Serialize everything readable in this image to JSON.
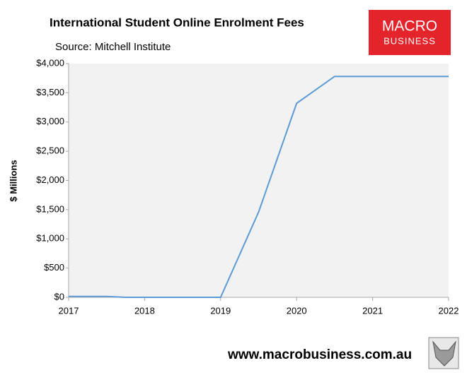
{
  "chart_data": {
    "type": "line",
    "title": "International Student Online Enrolment Fees",
    "subtitle": "Source: Mitchell Institute",
    "y_label": "$ Millions",
    "x": [
      2017,
      2017.5,
      2017.75,
      2019,
      2019.5,
      2020,
      2020.5,
      2022
    ],
    "values": [
      15,
      15,
      0,
      0,
      1460,
      3320,
      3780,
      3780
    ],
    "color": "#5b9bd5",
    "xlim": [
      2017,
      2022
    ],
    "xticks": [
      2017,
      2018,
      2019,
      2020,
      2021,
      2022
    ],
    "ylim": [
      0,
      4000
    ],
    "yticks": [
      {
        "value": 0,
        "label": "$0"
      },
      {
        "value": 500,
        "label": "$500"
      },
      {
        "value": 1000,
        "label": "$1,000"
      },
      {
        "value": 1500,
        "label": "$1,500"
      },
      {
        "value": 2000,
        "label": "$2,000"
      },
      {
        "value": 2500,
        "label": "$2,500"
      },
      {
        "value": 3000,
        "label": "$3,000"
      },
      {
        "value": 3500,
        "label": "$3,500"
      },
      {
        "value": 4000,
        "label": "$4,000"
      }
    ],
    "grid": false
  },
  "logo": {
    "line1": "MACRO",
    "line2": "BUSINESS"
  },
  "footer": "www.macrobusiness.com.au"
}
